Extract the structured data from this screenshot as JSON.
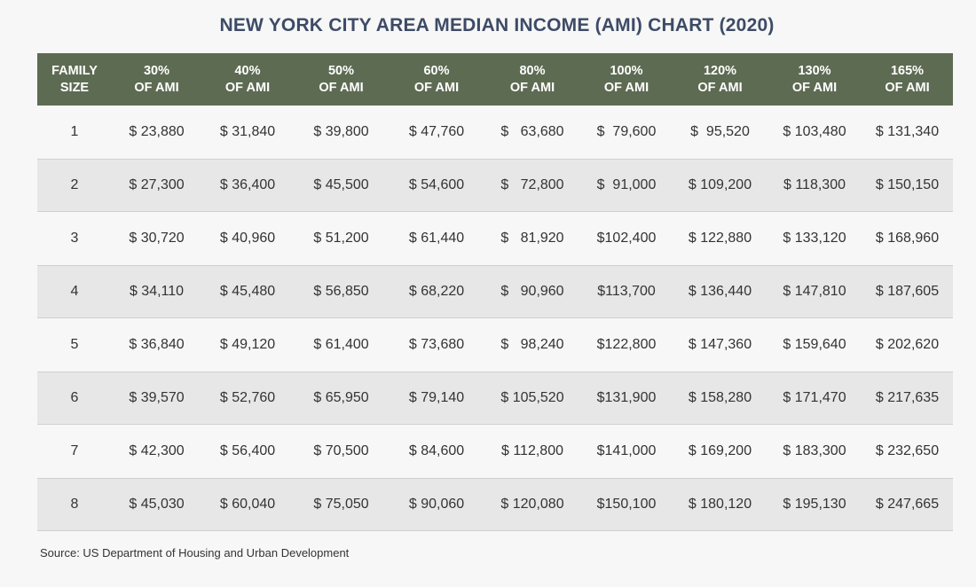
{
  "title": "NEW YORK CITY AREA MEDIAN INCOME (AMI) CHART (2020)",
  "source": "Source: US Department of Housing and Urban Development",
  "colors": {
    "header_bg": "#5e6b53",
    "title": "#3d4b66",
    "shaded_row": "#e7e7e7"
  },
  "chart_data": {
    "type": "table",
    "title": "NEW YORK CITY AREA MEDIAN INCOME (AMI) CHART (2020)",
    "columns": [
      {
        "line1": "FAMILY",
        "line2": "SIZE"
      },
      {
        "line1": "30%",
        "line2": "OF AMI"
      },
      {
        "line1": "40%",
        "line2": "OF AMI"
      },
      {
        "line1": "50%",
        "line2": "OF AMI"
      },
      {
        "line1": "60%",
        "line2": "OF AMI"
      },
      {
        "line1": "80%",
        "line2": "OF AMI"
      },
      {
        "line1": "100%",
        "line2": "OF AMI"
      },
      {
        "line1": "120%",
        "line2": "OF AMI"
      },
      {
        "line1": "130%",
        "line2": "OF AMI"
      },
      {
        "line1": "165%",
        "line2": "OF AMI"
      }
    ],
    "rows": [
      [
        "1",
        "$ 23,880",
        "$ 31,840",
        "$ 39,800",
        "$ 47,760",
        "$   63,680",
        "$  79,600",
        "$  95,520",
        "$ 103,480",
        "$ 131,340"
      ],
      [
        "2",
        "$ 27,300",
        "$ 36,400",
        "$ 45,500",
        "$ 54,600",
        "$   72,800",
        "$  91,000",
        "$ 109,200",
        "$ 118,300",
        "$ 150,150"
      ],
      [
        "3",
        "$ 30,720",
        "$ 40,960",
        "$ 51,200",
        "$ 61,440",
        "$   81,920",
        "$102,400",
        "$ 122,880",
        "$ 133,120",
        "$ 168,960"
      ],
      [
        "4",
        "$ 34,110",
        "$ 45,480",
        "$ 56,850",
        "$ 68,220",
        "$   90,960",
        "$113,700",
        "$ 136,440",
        "$ 147,810",
        "$ 187,605"
      ],
      [
        "5",
        "$ 36,840",
        "$ 49,120",
        "$ 61,400",
        "$ 73,680",
        "$   98,240",
        "$122,800",
        "$ 147,360",
        "$ 159,640",
        "$ 202,620"
      ],
      [
        "6",
        "$ 39,570",
        "$ 52,760",
        "$ 65,950",
        "$ 79,140",
        "$ 105,520",
        "$131,900",
        "$ 158,280",
        "$ 171,470",
        "$ 217,635"
      ],
      [
        "7",
        "$ 42,300",
        "$ 56,400",
        "$ 70,500",
        "$ 84,600",
        "$ 112,800",
        "$141,000",
        "$ 169,200",
        "$ 183,300",
        "$ 232,650"
      ],
      [
        "8",
        "$ 45,030",
        "$ 60,040",
        "$ 75,050",
        "$ 90,060",
        "$ 120,080",
        "$150,100",
        "$ 180,120",
        "$ 195,130",
        "$ 247,665"
      ]
    ]
  }
}
